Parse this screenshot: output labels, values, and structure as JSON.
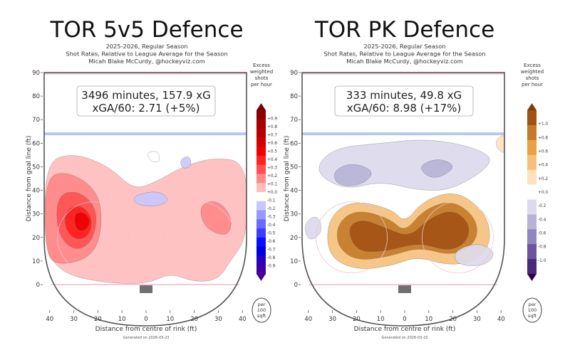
{
  "chart_data": [
    {
      "type": "heatmap",
      "title": "TOR 5v5 Defence",
      "subtitle_lines": [
        "2025-2026, Regular Season",
        "Shot Rates, Relative to League Average for the Season",
        "Micah Blake McCurdy, @hockeyviz.com"
      ],
      "stats_lines": [
        "3496 minutes, 157.9 xG",
        "xGA/60: 2.71 (+5%)"
      ],
      "xlabel": "Distance from centre of rink (ft)",
      "ylabel": "Distance from goal line (ft)",
      "x_ticks": [
        "40",
        "30",
        "20",
        "10",
        "0",
        "10",
        "20",
        "30",
        "40"
      ],
      "y_ticks": [
        "0",
        "10",
        "20",
        "30",
        "40",
        "50",
        "60",
        "70",
        "80",
        "90"
      ],
      "ylim": [
        0,
        90
      ],
      "colorbar_title": [
        "Excess",
        "weighted",
        "shots",
        "per hour"
      ],
      "colorbar_ticks": [
        "+0.9",
        "+0.8",
        "+0.7",
        "+0.6",
        "+0.5",
        "+0.4",
        "+0.3",
        "+0.2",
        "+0.1",
        "+0.0",
        "-0.1",
        "-0.2",
        "-0.3",
        "-0.4",
        "-0.5",
        "-0.6",
        "-0.7",
        "-0.8",
        "-0.9"
      ],
      "colorbar_colors": [
        "#7a0000",
        "#8e0000",
        "#a30000",
        "#b80000",
        "#d10000",
        "#ec0000",
        "#ff2020",
        "#ff5050",
        "#ff8888",
        "#ffbcbc",
        "#ffffff",
        "#c8c8ff",
        "#9898ff",
        "#6a6aff",
        "#3c3cff",
        "#0c0cff",
        "#0000e0",
        "#2a00c0",
        "#3e00a0",
        "#4a0090"
      ],
      "unit_badge": [
        "per",
        "100",
        "sqft"
      ],
      "footer": "Generated on 2026-03-23",
      "palette": "red-blue"
    },
    {
      "type": "heatmap",
      "title": "TOR PK Defence",
      "subtitle_lines": [
        "2025-2026, Regular Season",
        "Shot Rates, Relative to League Average for the Season",
        "Micah Blake McCurdy, @hockeyviz.com"
      ],
      "stats_lines": [
        "333 minutes, 49.8 xG",
        "xGA/60: 8.98 (+17%)"
      ],
      "xlabel": "Distance from centre of rink (ft)",
      "ylabel": "Distance from goal line (ft)",
      "x_ticks": [
        "40",
        "30",
        "20",
        "10",
        "0",
        "10",
        "20",
        "30",
        "40"
      ],
      "y_ticks": [
        "0",
        "10",
        "20",
        "30",
        "40",
        "50",
        "60",
        "70",
        "80",
        "90"
      ],
      "ylim": [
        0,
        90
      ],
      "colorbar_title": [
        "Excess",
        "weighted",
        "shots",
        "per hour"
      ],
      "colorbar_ticks": [
        "+1.0",
        "+0.8",
        "+0.6",
        "+0.4",
        "+0.2",
        "+0.0",
        "-0.2",
        "-0.4",
        "-0.6",
        "-0.8",
        "-1.0"
      ],
      "colorbar_colors": [
        "#7f3b08",
        "#a35214",
        "#c47a2a",
        "#e8a245",
        "#f6c07a",
        "#fde2bd",
        "#ffffff",
        "#dcdaec",
        "#b8b3d6",
        "#8f87bd",
        "#6a559e",
        "#4a2a7a",
        "#2d004b"
      ],
      "unit_badge": [
        "per",
        "100",
        "sqft"
      ],
      "footer": "Generated on 2026-03-23",
      "palette": "orange-purple"
    }
  ]
}
